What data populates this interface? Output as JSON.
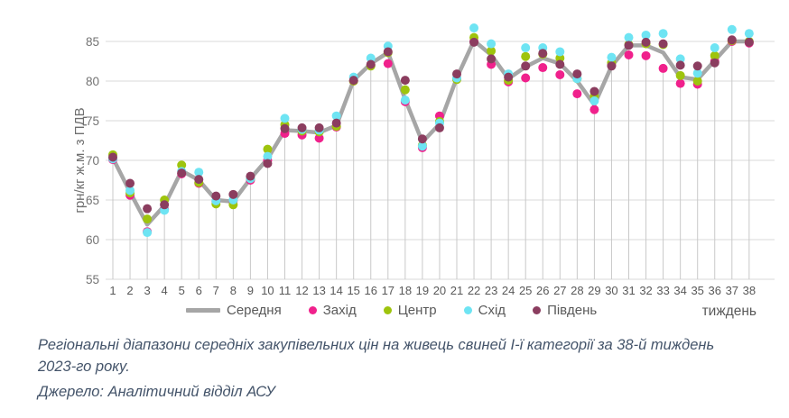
{
  "caption": {
    "title": "Регіональні діапазони середніх закупівельних цін на живець свиней І-ї категорії за 38-й тиждень 2023-го року.",
    "source": "Джерело: Аналітичний відділ АСУ"
  },
  "axis_colors": {
    "gridline": "#d9d9d9",
    "dropline": "#c9c9c9",
    "tick_text": "#737373"
  },
  "chart_data": {
    "type": "line",
    "title": "",
    "xlabel": "тиждень",
    "ylabel": "грн/кг ж.м. з ПДВ",
    "ylim": [
      55,
      88
    ],
    "yticks": [
      55,
      60,
      65,
      70,
      75,
      80,
      85
    ],
    "grid": "horizontal-and-droplines",
    "legend_position": "bottom",
    "x": [
      1,
      2,
      3,
      4,
      5,
      6,
      7,
      8,
      9,
      10,
      11,
      12,
      13,
      14,
      15,
      16,
      17,
      18,
      19,
      20,
      21,
      22,
      23,
      24,
      25,
      26,
      27,
      28,
      29,
      30,
      31,
      32,
      33,
      34,
      35,
      36,
      37,
      38
    ],
    "series": [
      {
        "name": "Середня",
        "key": "average",
        "marker": "line",
        "color": "#a6a6a6",
        "values": [
          70.3,
          66.0,
          61.9,
          64.3,
          68.7,
          67.5,
          65.0,
          64.8,
          67.7,
          70.2,
          73.8,
          73.7,
          73.5,
          74.4,
          80.1,
          82.2,
          83.6,
          77.7,
          72.3,
          74.6,
          80.4,
          85.1,
          83.3,
          80.3,
          81.8,
          82.9,
          82.2,
          80.0,
          77.0,
          81.9,
          84.5,
          84.5,
          83.6,
          80.5,
          80.2,
          82.6,
          85.0,
          85.0
        ]
      },
      {
        "name": "Захід",
        "key": "west",
        "marker": "dot",
        "color": "#f0218c",
        "values": [
          70.1,
          65.6,
          61.0,
          63.8,
          68.3,
          67.1,
          64.8,
          64.9,
          67.5,
          70.0,
          73.4,
          73.2,
          72.8,
          74.2,
          80.0,
          82.0,
          82.2,
          77.4,
          71.6,
          75.6,
          80.3,
          85.0,
          82.1,
          79.9,
          80.4,
          81.7,
          80.8,
          78.4,
          76.4,
          82.0,
          83.3,
          83.2,
          81.6,
          79.7,
          79.6,
          82.5,
          85.0,
          84.8
        ]
      },
      {
        "name": "Центр",
        "key": "center",
        "marker": "dot",
        "color": "#9ec40d",
        "values": [
          70.7,
          65.9,
          62.6,
          65.0,
          69.4,
          67.2,
          64.5,
          64.4,
          67.7,
          71.4,
          74.5,
          73.7,
          73.6,
          74.3,
          80.0,
          81.9,
          83.6,
          78.9,
          71.9,
          74.9,
          80.2,
          85.5,
          83.8,
          80.1,
          83.1,
          83.4,
          82.9,
          80.3,
          78.1,
          82.3,
          84.6,
          84.7,
          84.6,
          80.7,
          80.0,
          83.2,
          85.1,
          85.0
        ]
      },
      {
        "name": "Схід",
        "key": "east",
        "marker": "dot",
        "color": "#6ee4f3",
        "values": [
          70.2,
          66.2,
          60.9,
          63.7,
          68.6,
          68.5,
          64.9,
          65.0,
          67.7,
          70.5,
          75.3,
          73.9,
          73.8,
          75.6,
          80.5,
          82.9,
          84.4,
          77.6,
          71.8,
          74.7,
          80.4,
          86.7,
          84.7,
          80.9,
          84.2,
          84.2,
          83.7,
          80.3,
          77.5,
          83.0,
          85.5,
          85.8,
          86.0,
          82.8,
          81.0,
          84.2,
          86.5,
          86.0
        ]
      },
      {
        "name": "Південь",
        "key": "south",
        "marker": "dot",
        "color": "#8b3d5f",
        "values": [
          70.4,
          67.1,
          63.9,
          64.4,
          68.4,
          67.6,
          65.5,
          65.7,
          68.0,
          69.6,
          74.0,
          74.1,
          74.1,
          74.7,
          80.1,
          82.1,
          83.7,
          80.1,
          72.7,
          74.1,
          80.9,
          84.9,
          82.8,
          80.5,
          81.9,
          83.5,
          82.1,
          80.9,
          78.7,
          81.9,
          84.5,
          84.9,
          84.7,
          82.0,
          81.9,
          82.3,
          85.2,
          84.9
        ]
      }
    ]
  }
}
